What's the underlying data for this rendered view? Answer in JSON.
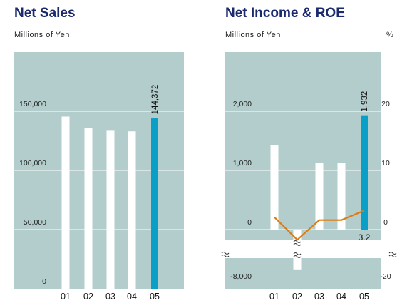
{
  "chart_data": [
    {
      "type": "bar",
      "title": "Net Sales",
      "ylabel": "Millions of Yen",
      "categories": [
        "01",
        "02",
        "03",
        "04",
        "05"
      ],
      "values": [
        145500,
        136000,
        133500,
        133000,
        144372
      ],
      "highlight_index": 4,
      "highlight_label": "144,372",
      "yticks": [
        0,
        50000,
        100000,
        150000
      ],
      "ytick_labels": [
        "0",
        "50,000",
        "100,000",
        "150,000"
      ],
      "ylim": [
        0,
        175000
      ],
      "grid": true
    },
    {
      "type": "bar+line",
      "title": "Net Income & ROE",
      "ylabel": "Millions of Yen",
      "y2label": "%",
      "categories": [
        "01",
        "02",
        "03",
        "04",
        "05"
      ],
      "net_income": [
        1430,
        -7200,
        1120,
        1130,
        1932
      ],
      "roe": [
        2.1,
        -4.6,
        1.6,
        1.6,
        3.2
      ],
      "highlight_index": 4,
      "highlight_label": "1,932",
      "roe_label": "3.2",
      "yticks_left": [
        "2,000",
        "1,000",
        "0",
        "-8,000"
      ],
      "yticks_right": [
        "20",
        "10",
        "0",
        "-20"
      ],
      "broken_axis": true,
      "grid": true
    }
  ],
  "colors": {
    "panel": "#b3cdcd",
    "bar": "#ffffff",
    "highlight": "#0a9fc6",
    "roe_line": "#e07b0f",
    "title": "#1a2a6c"
  }
}
